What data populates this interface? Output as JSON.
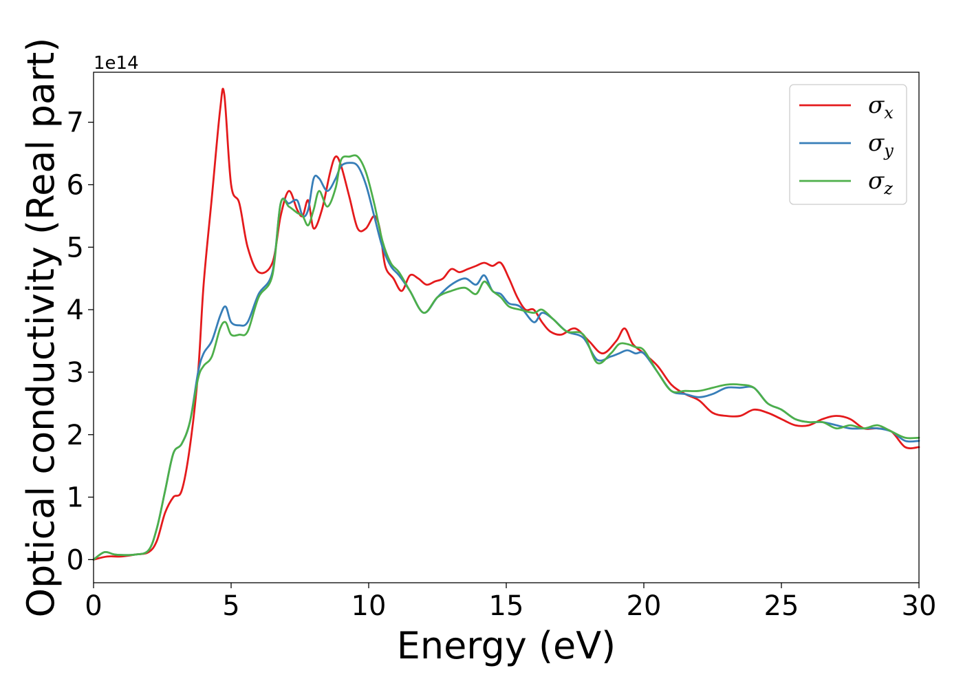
{
  "chart_data": {
    "type": "line",
    "title": "",
    "xlabel": "Energy (eV)",
    "ylabel": "Optical conductivity (Real part)",
    "y_offset_label": "1e14",
    "xlim": [
      0,
      30
    ],
    "ylim": [
      -0.37,
      7.8
    ],
    "xticks": [
      0,
      5,
      10,
      15,
      20,
      25,
      30
    ],
    "yticks": [
      0,
      1,
      2,
      3,
      4,
      5,
      6,
      7
    ],
    "grid": false,
    "legend_position": "top-right",
    "series": [
      {
        "name": "σx",
        "legend_base": "σ",
        "legend_sub": "x",
        "color": "#e41a1c",
        "x": [
          0,
          0.5,
          1.0,
          1.5,
          2.0,
          2.3,
          2.6,
          2.9,
          3.2,
          3.5,
          3.8,
          4.0,
          4.3,
          4.6,
          4.75,
          5.0,
          5.3,
          5.6,
          6.0,
          6.5,
          6.8,
          7.1,
          7.4,
          7.6,
          7.8,
          8.0,
          8.3,
          8.6,
          8.8,
          9.0,
          9.3,
          9.6,
          9.9,
          10.2,
          10.4,
          10.6,
          10.9,
          11.2,
          11.5,
          11.8,
          12.1,
          12.4,
          12.7,
          13.0,
          13.3,
          13.6,
          13.9,
          14.2,
          14.5,
          14.8,
          15.1,
          15.4,
          15.7,
          16.0,
          16.3,
          16.6,
          17.0,
          17.5,
          18.0,
          18.5,
          19.0,
          19.3,
          19.6,
          20.0,
          20.5,
          21.0,
          21.5,
          22.0,
          22.5,
          23.0,
          23.5,
          24.0,
          24.5,
          25.0,
          25.5,
          26.0,
          26.5,
          27.0,
          27.5,
          28.0,
          28.5,
          29.0,
          29.5,
          30.0
        ],
        "y": [
          0.0,
          0.05,
          0.05,
          0.08,
          0.12,
          0.3,
          0.75,
          1.0,
          1.1,
          1.8,
          3.0,
          4.4,
          5.8,
          7.2,
          7.45,
          6.0,
          5.7,
          5.0,
          4.6,
          4.75,
          5.5,
          5.9,
          5.6,
          5.5,
          5.75,
          5.3,
          5.6,
          6.2,
          6.45,
          6.3,
          5.8,
          5.3,
          5.3,
          5.5,
          5.3,
          4.7,
          4.5,
          4.3,
          4.55,
          4.5,
          4.4,
          4.45,
          4.5,
          4.65,
          4.6,
          4.65,
          4.7,
          4.75,
          4.7,
          4.75,
          4.5,
          4.2,
          4.0,
          4.0,
          3.8,
          3.65,
          3.6,
          3.7,
          3.5,
          3.3,
          3.5,
          3.7,
          3.45,
          3.3,
          3.1,
          2.8,
          2.65,
          2.55,
          2.35,
          2.3,
          2.3,
          2.4,
          2.35,
          2.25,
          2.15,
          2.15,
          2.25,
          2.3,
          2.25,
          2.1,
          2.1,
          2.05,
          1.8,
          1.8
        ]
      },
      {
        "name": "σy",
        "legend_base": "σ",
        "legend_sub": "y",
        "color": "#377eb8",
        "x": [
          0,
          0.4,
          0.8,
          1.5,
          2.0,
          2.3,
          2.6,
          2.9,
          3.2,
          3.5,
          3.8,
          4.0,
          4.3,
          4.6,
          4.8,
          5.0,
          5.3,
          5.6,
          6.0,
          6.5,
          6.8,
          7.1,
          7.4,
          7.6,
          7.8,
          8.0,
          8.2,
          8.5,
          8.8,
          9.0,
          9.3,
          9.6,
          9.9,
          10.2,
          10.5,
          10.8,
          11.1,
          11.5,
          12.0,
          12.5,
          13.0,
          13.5,
          13.9,
          14.2,
          14.5,
          14.8,
          15.1,
          15.5,
          16.0,
          16.3,
          16.7,
          17.2,
          17.8,
          18.3,
          18.8,
          19.1,
          19.4,
          19.7,
          20.0,
          20.5,
          21.0,
          21.5,
          22.0,
          22.5,
          23.0,
          23.5,
          24.0,
          24.5,
          25.0,
          25.5,
          26.0,
          26.5,
          27.0,
          27.5,
          28.0,
          28.5,
          29.0,
          29.5,
          30.0
        ],
        "y": [
          0.0,
          0.12,
          0.08,
          0.08,
          0.15,
          0.5,
          1.1,
          1.7,
          1.85,
          2.2,
          3.0,
          3.3,
          3.5,
          3.9,
          4.05,
          3.8,
          3.75,
          3.8,
          4.25,
          4.6,
          5.7,
          5.7,
          5.75,
          5.5,
          5.6,
          6.1,
          6.1,
          5.9,
          6.1,
          6.3,
          6.35,
          6.3,
          6.0,
          5.5,
          5.0,
          4.7,
          4.55,
          4.3,
          3.95,
          4.2,
          4.4,
          4.5,
          4.4,
          4.55,
          4.3,
          4.25,
          4.1,
          4.05,
          3.8,
          3.95,
          3.85,
          3.65,
          3.55,
          3.2,
          3.25,
          3.3,
          3.35,
          3.3,
          3.3,
          3.0,
          2.7,
          2.65,
          2.6,
          2.65,
          2.75,
          2.75,
          2.75,
          2.5,
          2.4,
          2.25,
          2.2,
          2.2,
          2.15,
          2.1,
          2.1,
          2.1,
          2.05,
          1.9,
          1.9
        ]
      },
      {
        "name": "σz",
        "legend_base": "σ",
        "legend_sub": "z",
        "color": "#4daf4a",
        "x": [
          0,
          0.4,
          0.8,
          1.5,
          2.0,
          2.3,
          2.6,
          2.9,
          3.2,
          3.5,
          3.8,
          4.0,
          4.3,
          4.6,
          4.8,
          5.0,
          5.3,
          5.6,
          6.0,
          6.5,
          6.8,
          7.1,
          7.4,
          7.6,
          7.8,
          8.0,
          8.2,
          8.5,
          8.8,
          9.0,
          9.3,
          9.6,
          9.9,
          10.2,
          10.5,
          10.8,
          11.1,
          11.5,
          12.0,
          12.5,
          13.0,
          13.5,
          13.9,
          14.2,
          14.5,
          14.8,
          15.1,
          15.5,
          16.0,
          16.3,
          16.7,
          17.2,
          17.8,
          18.3,
          18.8,
          19.1,
          19.4,
          19.7,
          20.0,
          20.5,
          21.0,
          21.5,
          22.0,
          22.5,
          23.0,
          23.5,
          24.0,
          24.5,
          25.0,
          25.5,
          26.0,
          26.5,
          27.0,
          27.5,
          28.0,
          28.5,
          29.0,
          29.5,
          30.0
        ],
        "y": [
          0.0,
          0.12,
          0.08,
          0.08,
          0.15,
          0.5,
          1.1,
          1.7,
          1.85,
          2.2,
          2.9,
          3.1,
          3.25,
          3.7,
          3.8,
          3.6,
          3.6,
          3.65,
          4.2,
          4.55,
          5.7,
          5.65,
          5.55,
          5.5,
          5.35,
          5.6,
          5.9,
          5.65,
          5.95,
          6.4,
          6.45,
          6.45,
          6.2,
          5.7,
          5.1,
          4.75,
          4.6,
          4.3,
          3.95,
          4.2,
          4.3,
          4.35,
          4.25,
          4.45,
          4.3,
          4.2,
          4.05,
          4.0,
          3.95,
          4.0,
          3.85,
          3.65,
          3.6,
          3.15,
          3.3,
          3.45,
          3.45,
          3.4,
          3.35,
          3.0,
          2.7,
          2.7,
          2.7,
          2.75,
          2.8,
          2.8,
          2.75,
          2.5,
          2.4,
          2.25,
          2.2,
          2.2,
          2.1,
          2.15,
          2.1,
          2.15,
          2.05,
          1.95,
          1.95
        ]
      }
    ]
  }
}
